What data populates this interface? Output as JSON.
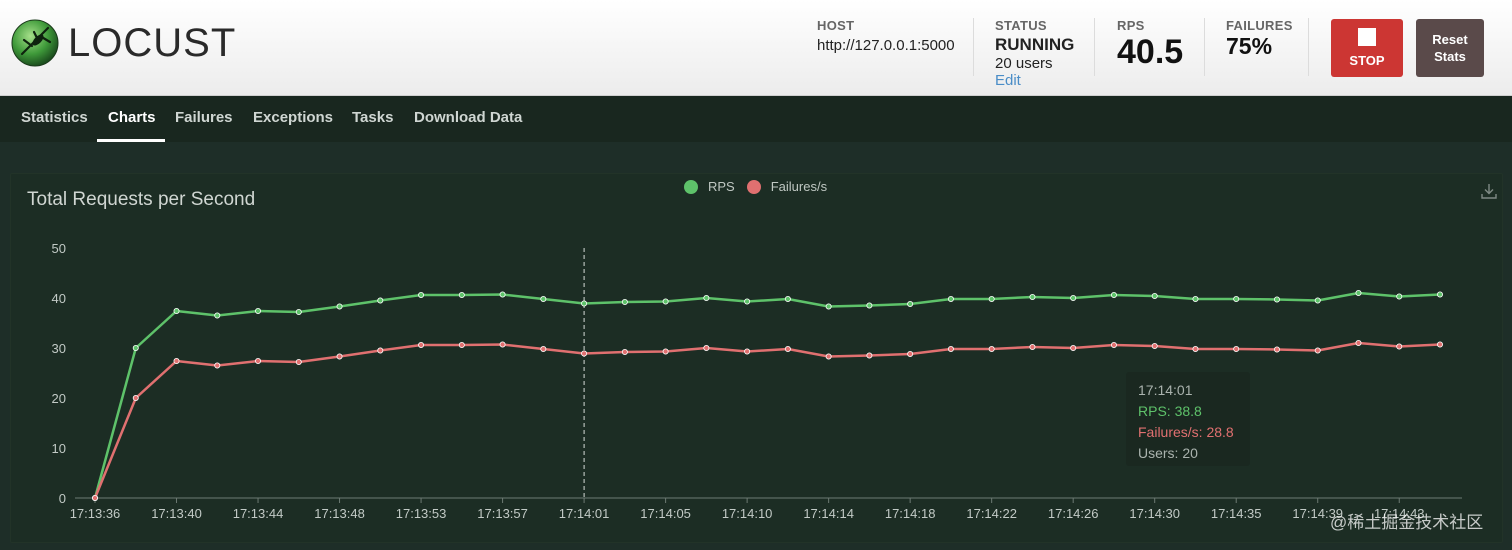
{
  "header": {
    "logo_text": "LOCUST",
    "host": {
      "label": "HOST",
      "value": "http://127.0.0.1:5000"
    },
    "status": {
      "label": "STATUS",
      "value": "RUNNING",
      "users": "20 users",
      "edit": "Edit"
    },
    "rps": {
      "label": "RPS",
      "value": "40.5"
    },
    "failures": {
      "label": "FAILURES",
      "value": "75%"
    },
    "stop_label": "STOP",
    "reset_label_1": "Reset",
    "reset_label_2": "Stats"
  },
  "nav": {
    "tabs": [
      {
        "label": "Statistics",
        "active": false
      },
      {
        "label": "Charts",
        "active": true
      },
      {
        "label": "Failures",
        "active": false
      },
      {
        "label": "Exceptions",
        "active": false
      },
      {
        "label": "Tasks",
        "active": false
      },
      {
        "label": "Download Data",
        "active": false
      }
    ]
  },
  "colors": {
    "rps": "#5ec26a",
    "failures": "#e07070",
    "stop": "#cc3633"
  },
  "chart_data": {
    "type": "line",
    "title": "Total Requests per Second",
    "ylim": [
      0,
      50
    ],
    "yticks": [
      0,
      10,
      20,
      30,
      40,
      50
    ],
    "xticks": [
      "17:13:36",
      "17:13:40",
      "17:13:44",
      "17:13:48",
      "17:13:53",
      "17:13:57",
      "17:14:01",
      "17:14:05",
      "17:14:10",
      "17:14:14",
      "17:14:18",
      "17:14:22",
      "17:14:26",
      "17:14:30",
      "17:14:35",
      "17:14:39",
      "17:14:43"
    ],
    "legend": "top-center",
    "series": [
      {
        "name": "RPS",
        "values": [
          0,
          30,
          37.4,
          36.5,
          37.4,
          37.2,
          38.3,
          39.5,
          40.6,
          40.6,
          40.7,
          39.8,
          38.9,
          39.2,
          39.3,
          40.0,
          39.3,
          39.8,
          38.3,
          38.5,
          38.8,
          39.8,
          39.8,
          40.2,
          40.0,
          40.6,
          40.4,
          39.8,
          39.8,
          39.7,
          39.5,
          41.0,
          40.3,
          40.7
        ]
      },
      {
        "name": "Failures/s",
        "values": [
          0,
          20,
          27.4,
          26.5,
          27.4,
          27.2,
          28.3,
          29.5,
          30.6,
          30.6,
          30.7,
          29.8,
          28.9,
          29.2,
          29.3,
          30.0,
          29.3,
          29.8,
          28.3,
          28.5,
          28.8,
          29.8,
          29.8,
          30.2,
          30.0,
          30.6,
          30.4,
          29.8,
          29.8,
          29.7,
          29.5,
          31.0,
          30.3,
          30.7
        ]
      }
    ],
    "tooltip": {
      "time": "17:14:01",
      "rps": "RPS: 38.8",
      "failures": "Failures/s: 28.8",
      "users": "Users: 20"
    }
  },
  "watermark": "@稀土掘金技术社区"
}
